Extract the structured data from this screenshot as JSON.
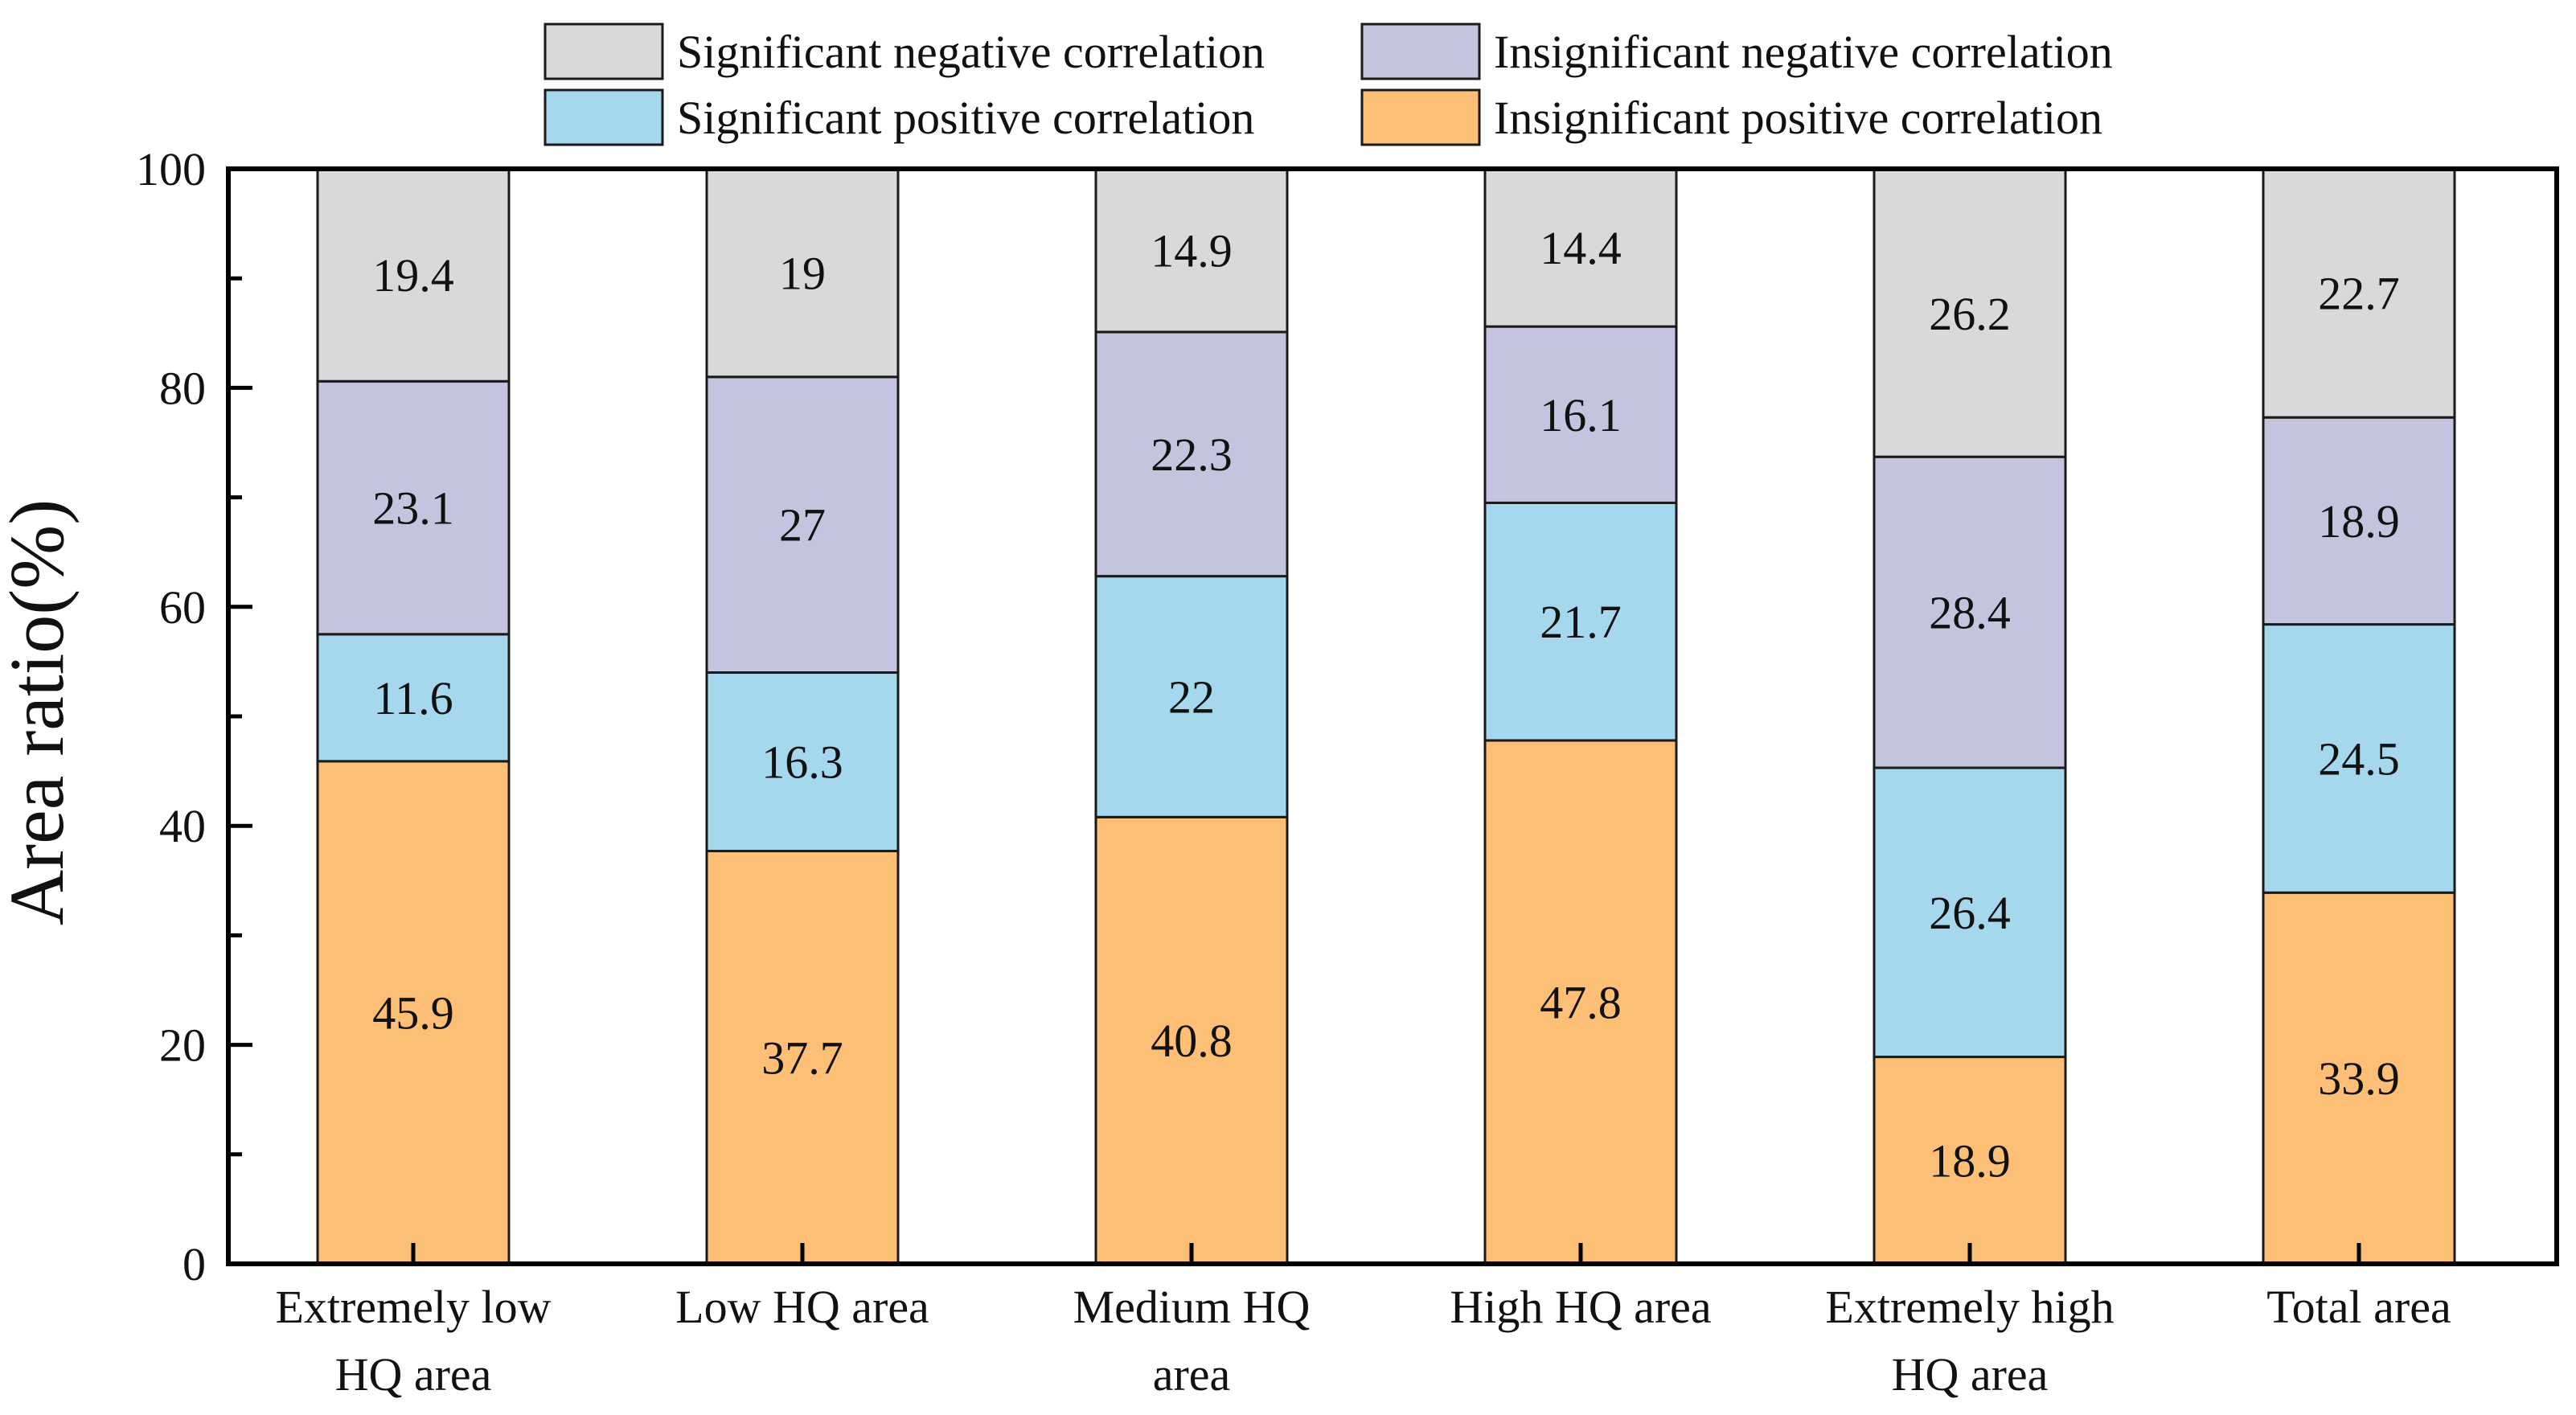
{
  "chart_data": {
    "type": "bar",
    "stacked": true,
    "title": "",
    "xlabel": "",
    "ylabel": "Area ratio(%)",
    "ylim": [
      0,
      100
    ],
    "yticks": [
      "0",
      "20",
      "40",
      "60",
      "80",
      "100"
    ],
    "categories": [
      [
        "Extremely low",
        "HQ area"
      ],
      [
        "Low HQ area"
      ],
      [
        "Medium HQ",
        "area"
      ],
      [
        "High HQ area"
      ],
      [
        "Extremely high",
        "HQ area"
      ],
      [
        "Total area"
      ]
    ],
    "series": [
      {
        "name": "Insignificant positive correlation",
        "color": "#FDBF75",
        "values": [
          45.9,
          37.7,
          40.8,
          47.8,
          18.9,
          33.9
        ],
        "labels": [
          "45.9",
          "37.7",
          "40.8",
          "47.8",
          "18.9",
          "33.9"
        ]
      },
      {
        "name": "Significant positive correlation",
        "color": "#A5D7ED",
        "values": [
          11.6,
          16.3,
          22,
          21.7,
          26.4,
          24.5
        ],
        "labels": [
          "11.6",
          "16.3",
          "22",
          "21.7",
          "26.4",
          "24.5"
        ]
      },
      {
        "name": "Insignificant negative correlation",
        "color": "#C4C4DE",
        "values": [
          23.1,
          27,
          22.3,
          16.1,
          28.4,
          18.9
        ],
        "labels": [
          "23.1",
          "27",
          "22.3",
          "16.1",
          "28.4",
          "18.9"
        ]
      },
      {
        "name": "Significant negative correlation",
        "color": "#D9D9D9",
        "values": [
          19.4,
          19,
          14.9,
          14.4,
          26.2,
          22.7
        ],
        "labels": [
          "19.4",
          "19",
          "14.9",
          "14.4",
          "26.2",
          "22.7"
        ]
      }
    ],
    "legend": {
      "position": "top",
      "order": [
        "Significant negative correlation",
        "Insignificant negative correlation",
        "Significant positive correlation",
        "Insignificant positive correlation"
      ]
    }
  }
}
